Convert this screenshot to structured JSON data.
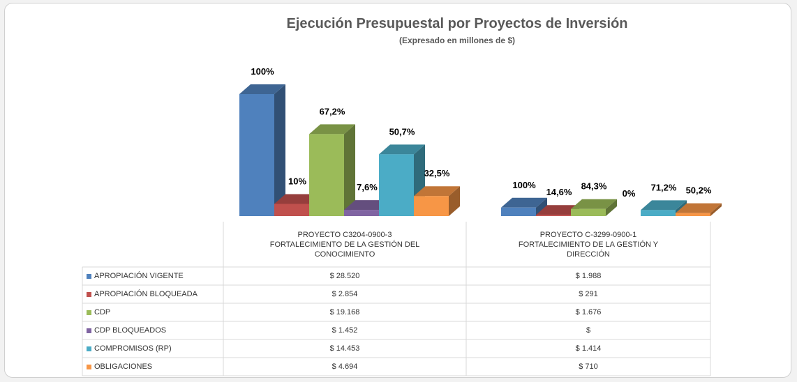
{
  "chart_data": {
    "type": "bar3d",
    "title": "Ejecución Presupuestal por Proyectos de Inversión",
    "subtitle": "(Expresado en millones de $)",
    "categories": [
      "PROYECTO C3204-0900-3\nFORTALECIMIENTO DE LA GESTIÓN DEL\nCONOCIMIENTO",
      "PROYECTO C-3299-0900-1\nFORTALECIMIENTO DE LA GESTIÓN Y\nDIRECCIÓN"
    ],
    "series": [
      {
        "name": "APROPIACIÓN VIGENTE",
        "color": "#4f81bd",
        "values": [
          28520,
          1988
        ],
        "value_labels": [
          "$ 28.520",
          "$ 1.988"
        ],
        "percent": [
          100,
          100
        ],
        "percent_labels": [
          "100%",
          "100%"
        ]
      },
      {
        "name": "APROPIACIÓN BLOQUEADA",
        "color": "#c0504d",
        "values": [
          2854,
          291
        ],
        "value_labels": [
          "$ 2.854",
          "$ 291"
        ],
        "percent": [
          10,
          14.6
        ],
        "percent_labels": [
          "10%",
          "14,6%"
        ]
      },
      {
        "name": "CDP",
        "color": "#9bbb59",
        "values": [
          19168,
          1676
        ],
        "value_labels": [
          "$ 19.168",
          "$ 1.676"
        ],
        "percent": [
          67.2,
          84.3
        ],
        "percent_labels": [
          "67,2%",
          "84,3%"
        ]
      },
      {
        "name": "CDP BLOQUEADOS",
        "color": "#8064a2",
        "values": [
          1452,
          null
        ],
        "value_labels": [
          "$ 1.452",
          "$"
        ],
        "percent": [
          7.6,
          0
        ],
        "percent_labels": [
          "7,6%",
          "0%"
        ]
      },
      {
        "name": "COMPROMISOS (RP)",
        "color": "#4bacc6",
        "values": [
          14453,
          1414
        ],
        "value_labels": [
          "$ 14.453",
          "$ 1.414"
        ],
        "percent": [
          50.7,
          71.2
        ],
        "percent_labels": [
          "50,7%",
          "71,2%"
        ]
      },
      {
        "name": "OBLIGACIONES",
        "color": "#f79646",
        "values": [
          4694,
          710
        ],
        "value_labels": [
          "$ 4.694",
          "$ 710"
        ],
        "percent": [
          32.5,
          50.2
        ],
        "percent_labels": [
          "32,5%",
          "50,2%"
        ]
      }
    ]
  }
}
